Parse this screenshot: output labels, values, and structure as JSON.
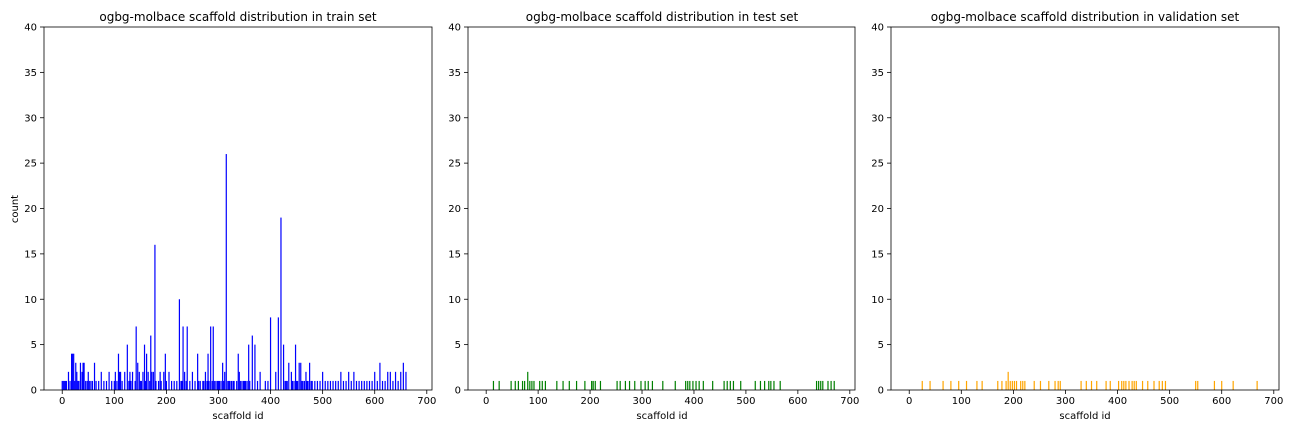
{
  "figure": {
    "background": "#ffffff"
  },
  "chart_data": [
    {
      "type": "bar",
      "title": "ogbg-molbace scaffold distribution in train set",
      "xlabel": "scaffold id",
      "ylabel": "count",
      "xlim": [
        -35,
        710
      ],
      "ylim": [
        0,
        40
      ],
      "xticks": [
        0,
        100,
        200,
        300,
        400,
        500,
        600,
        700
      ],
      "yticks": [
        0,
        5,
        10,
        15,
        20,
        25,
        30,
        35,
        40
      ],
      "grid": false,
      "color": "#0000ff",
      "x": [
        0,
        2,
        4,
        6,
        8,
        12,
        15,
        18,
        20,
        22,
        24,
        26,
        28,
        30,
        32,
        35,
        38,
        40,
        42,
        45,
        48,
        50,
        52,
        55,
        58,
        62,
        65,
        70,
        75,
        80,
        85,
        90,
        95,
        100,
        102,
        105,
        108,
        110,
        112,
        115,
        120,
        125,
        128,
        130,
        132,
        135,
        140,
        142,
        145,
        148,
        150,
        152,
        155,
        158,
        160,
        162,
        165,
        168,
        170,
        172,
        175,
        178,
        180,
        185,
        188,
        190,
        195,
        198,
        200,
        205,
        210,
        215,
        220,
        225,
        228,
        230,
        232,
        235,
        238,
        240,
        245,
        250,
        255,
        260,
        262,
        265,
        270,
        272,
        275,
        278,
        280,
        282,
        285,
        288,
        290,
        292,
        295,
        298,
        300,
        302,
        305,
        308,
        310,
        312,
        315,
        318,
        320,
        322,
        325,
        328,
        330,
        335,
        338,
        340,
        342,
        345,
        348,
        350,
        352,
        355,
        358,
        360,
        365,
        370,
        375,
        380,
        390,
        395,
        400,
        410,
        415,
        420,
        425,
        428,
        430,
        432,
        435,
        440,
        442,
        445,
        448,
        450,
        452,
        455,
        458,
        460,
        462,
        465,
        468,
        470,
        472,
        475,
        478,
        480,
        485,
        490,
        495,
        500,
        505,
        510,
        515,
        520,
        525,
        530,
        535,
        540,
        545,
        550,
        555,
        560,
        565,
        570,
        575,
        580,
        585,
        590,
        595,
        600,
        605,
        610,
        615,
        620,
        625,
        630,
        635,
        640,
        645,
        650,
        655,
        660
      ],
      "values": [
        1,
        1,
        1,
        1,
        1,
        2,
        1,
        4,
        4,
        4,
        1,
        3,
        2,
        1,
        1,
        3,
        2,
        3,
        3,
        1,
        1,
        2,
        1,
        1,
        1,
        3,
        1,
        1,
        2,
        1,
        1,
        2,
        1,
        1,
        2,
        1,
        4,
        2,
        2,
        1,
        2,
        5,
        1,
        2,
        1,
        2,
        1,
        7,
        3,
        2,
        1,
        1,
        2,
        5,
        1,
        4,
        2,
        1,
        6,
        2,
        2,
        16,
        1,
        1,
        2,
        1,
        2,
        4,
        1,
        2,
        1,
        1,
        1,
        10,
        1,
        1,
        7,
        2,
        1,
        7,
        1,
        2,
        1,
        4,
        1,
        1,
        1,
        1,
        2,
        1,
        4,
        1,
        7,
        1,
        7,
        1,
        1,
        1,
        1,
        1,
        1,
        3,
        1,
        2,
        26,
        1,
        1,
        1,
        1,
        1,
        1,
        1,
        4,
        2,
        1,
        1,
        1,
        1,
        1,
        1,
        5,
        1,
        6,
        5,
        1,
        2,
        1,
        1,
        8,
        2,
        8,
        19,
        5,
        1,
        1,
        1,
        3,
        2,
        1,
        1,
        5,
        1,
        1,
        3,
        3,
        1,
        1,
        1,
        2,
        1,
        1,
        3,
        1,
        1,
        1,
        1,
        1,
        2,
        1,
        1,
        1,
        1,
        1,
        1,
        2,
        1,
        1,
        2,
        1,
        2,
        1,
        1,
        1,
        1,
        1,
        1,
        1,
        2,
        1,
        3,
        1,
        1,
        2,
        2,
        1,
        2,
        1,
        2,
        3,
        2
      ]
    },
    {
      "type": "bar",
      "title": "ogbg-molbace scaffold distribution in test set",
      "xlabel": "scaffold id",
      "ylabel": "",
      "xlim": [
        -35,
        710
      ],
      "ylim": [
        0,
        40
      ],
      "xticks": [
        0,
        100,
        200,
        300,
        400,
        500,
        600,
        700
      ],
      "yticks": [
        0,
        5,
        10,
        15,
        20,
        25,
        30,
        35,
        40
      ],
      "grid": false,
      "color": "#008000",
      "x": [
        14,
        25,
        48,
        56,
        62,
        70,
        74,
        80,
        84,
        88,
        92,
        103,
        108,
        114,
        136,
        148,
        160,
        174,
        190,
        203,
        206,
        210,
        220,
        252,
        258,
        268,
        276,
        286,
        298,
        306,
        312,
        320,
        340,
        364,
        384,
        388,
        392,
        398,
        404,
        410,
        418,
        436,
        458,
        464,
        470,
        476,
        490,
        518,
        528,
        536,
        544,
        548,
        554,
        566,
        636,
        640,
        644,
        648,
        658,
        664,
        670
      ],
      "values": [
        1,
        1,
        1,
        1,
        1,
        1,
        1,
        2,
        1,
        1,
        1,
        1,
        1,
        1,
        1,
        1,
        1,
        1,
        1,
        1,
        1,
        1,
        1,
        1,
        1,
        1,
        1,
        1,
        1,
        1,
        1,
        1,
        1,
        1,
        1,
        1,
        1,
        1,
        1,
        1,
        1,
        1,
        1,
        1,
        1,
        1,
        1,
        1,
        1,
        1,
        1,
        1,
        1,
        1,
        1,
        1,
        1,
        1,
        1,
        1,
        1
      ]
    },
    {
      "type": "bar",
      "title": "ogbg-molbace scaffold distribution in validation set",
      "xlabel": "scaffold id",
      "ylabel": "",
      "xlim": [
        -35,
        710
      ],
      "ylim": [
        0,
        40
      ],
      "xticks": [
        0,
        100,
        200,
        300,
        400,
        500,
        600,
        700
      ],
      "yticks": [
        0,
        5,
        10,
        15,
        20,
        25,
        30,
        35,
        40
      ],
      "grid": false,
      "color": "#ffa500",
      "x": [
        25,
        40,
        65,
        80,
        95,
        110,
        130,
        140,
        170,
        178,
        186,
        190,
        194,
        198,
        202,
        206,
        214,
        218,
        222,
        240,
        252,
        268,
        280,
        286,
        290,
        330,
        340,
        350,
        360,
        378,
        386,
        402,
        408,
        412,
        416,
        422,
        428,
        432,
        436,
        448,
        458,
        470,
        480,
        486,
        492,
        550,
        554,
        586,
        600,
        622,
        668
      ],
      "values": [
        1,
        1,
        1,
        1,
        1,
        1,
        1,
        1,
        1,
        1,
        1,
        2,
        1,
        1,
        1,
        1,
        1,
        1,
        1,
        1,
        1,
        1,
        1,
        1,
        1,
        1,
        1,
        1,
        1,
        1,
        1,
        1,
        1,
        1,
        1,
        1,
        1,
        1,
        1,
        1,
        1,
        1,
        1,
        1,
        1,
        1,
        1,
        1,
        1,
        1,
        1
      ]
    }
  ]
}
